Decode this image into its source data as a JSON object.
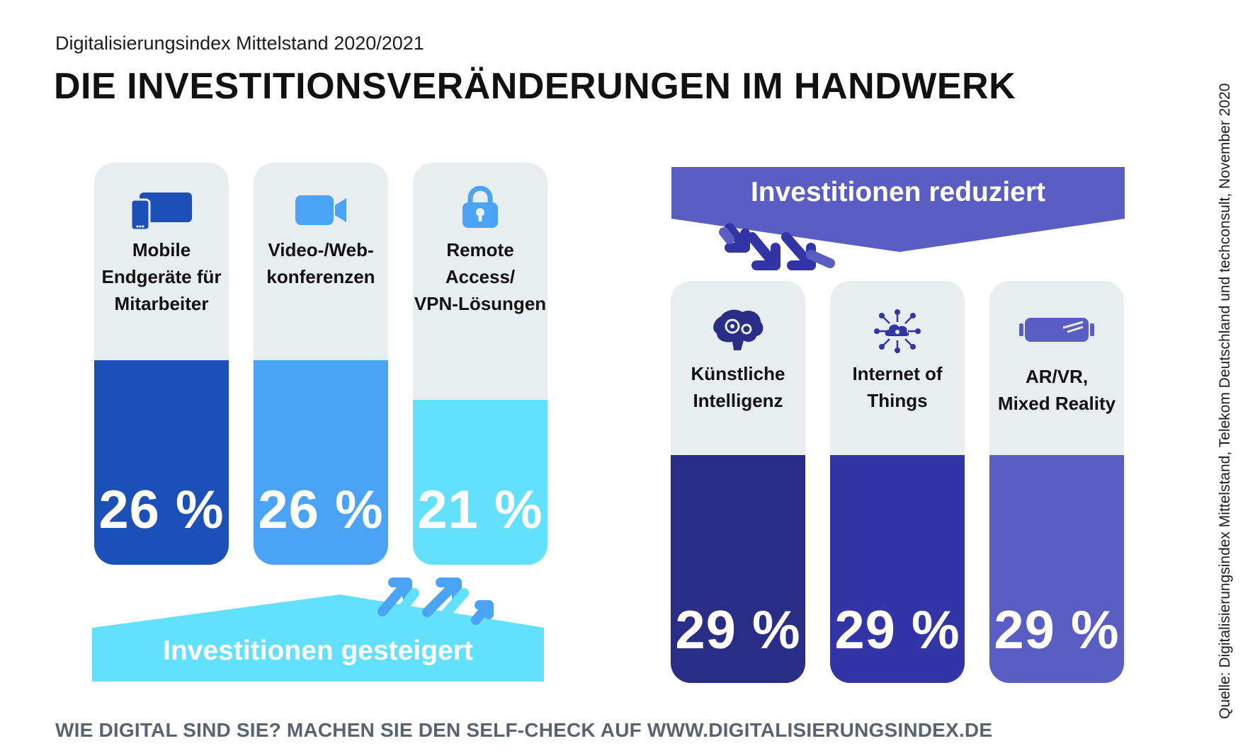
{
  "header": {
    "subtitle": "Digitalisierungsindex Mittelstand 2020/2021",
    "title": "DIE INVESTITIONSVERÄNDERUNGEN IM HANDWERK"
  },
  "source": "Quelle: Digitalisierungsindex Mittelstand, Telekom Deutschland und techconsult, November 2020",
  "footer": "WIE DIGITAL SIND SIE? MACHEN SIE DEN SELF-CHECK AUF WWW.DIGITALISIERUNGSINDEX.DE",
  "colors": {
    "card_bg": "#e8edf0",
    "increase_1": "#1c4fb8",
    "increase_2": "#4aa3f5",
    "increase_3": "#63e0fb",
    "decrease_1": "#2a2d86",
    "decrease_2": "#3335a6",
    "decrease_3": "#5a5ec3",
    "banner_increase": "#63e0fb",
    "banner_decrease": "#5a5ec3"
  },
  "chart_data": [
    {
      "type": "bar",
      "group": "Investitionen gesteigert",
      "categories": [
        "Mobile Endgeräte für Mitarbeiter",
        "Video-/Web- konferenzen",
        "Remote Access/ VPN-Lösungen"
      ],
      "labels": [
        "Mobile\nEndgeräte für\nMitarbeiter",
        "Video-/Web-\nkonferenzen",
        "Remote\nAccess/\nVPN-Lösungen"
      ],
      "icons": [
        "mobile-devices-icon",
        "video-camera-icon",
        "padlock-icon"
      ],
      "values": [
        26,
        26,
        21
      ],
      "value_labels": [
        "26 %",
        "26 %",
        "21 %"
      ],
      "unit": "%"
    },
    {
      "type": "bar",
      "group": "Investitionen reduziert",
      "categories": [
        "Künstliche Intelligenz",
        "Internet of Things",
        "AR/VR, Mixed Reality"
      ],
      "labels": [
        "Künstliche\nIntelligenz",
        "Internet of\nThings",
        "AR/VR,\nMixed Reality"
      ],
      "icons": [
        "brain-gears-icon",
        "iot-cloud-icon",
        "vr-headset-icon"
      ],
      "values": [
        29,
        29,
        29
      ],
      "value_labels": [
        "29 %",
        "29 %",
        "29 %"
      ],
      "unit": "%"
    }
  ]
}
